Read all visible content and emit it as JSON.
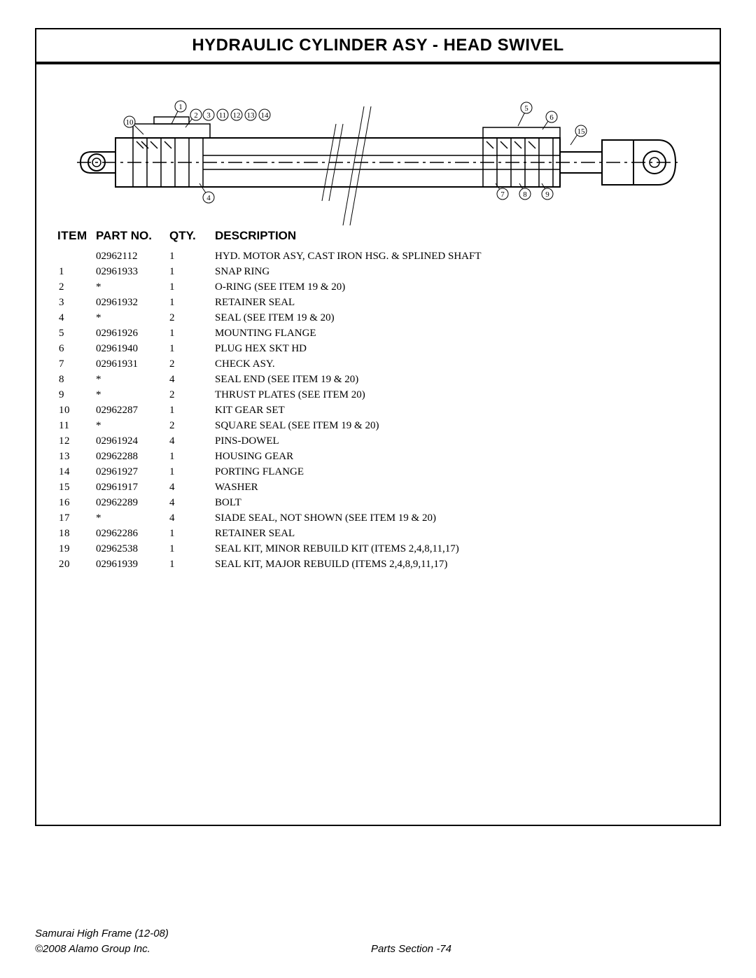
{
  "title": "HYDRAULIC CYLINDER ASY - HEAD SWIVEL",
  "headers": {
    "item": "ITEM",
    "partno": "PART NO.",
    "qty": "QTY.",
    "desc": "DESCRIPTION"
  },
  "rows": [
    {
      "item": "",
      "partno": "02962112",
      "qty": "1",
      "desc": "HYD. MOTOR ASY, CAST IRON HSG. & SPLINED SHAFT"
    },
    {
      "item": "1",
      "partno": "02961933",
      "qty": "1",
      "desc": "SNAP RING"
    },
    {
      "item": "2",
      "partno": "*",
      "qty": "1",
      "desc": "O-RING (SEE ITEM 19 & 20)"
    },
    {
      "item": "3",
      "partno": "02961932",
      "qty": "1",
      "desc": "RETAINER SEAL"
    },
    {
      "item": "4",
      "partno": "*",
      "qty": "2",
      "desc": "SEAL (SEE ITEM 19 & 20)"
    },
    {
      "item": "5",
      "partno": "02961926",
      "qty": "1",
      "desc": "MOUNTING FLANGE"
    },
    {
      "item": "6",
      "partno": "02961940",
      "qty": "1",
      "desc": "PLUG HEX SKT HD"
    },
    {
      "item": "7",
      "partno": "02961931",
      "qty": "2",
      "desc": "CHECK ASY."
    },
    {
      "item": "8",
      "partno": "*",
      "qty": "4",
      "desc": "SEAL END (SEE ITEM 19 & 20)"
    },
    {
      "item": "9",
      "partno": "*",
      "qty": "2",
      "desc": "THRUST PLATES (SEE ITEM 20)"
    },
    {
      "item": "10",
      "partno": "02962287",
      "qty": "1",
      "desc": "KIT GEAR SET"
    },
    {
      "item": "11",
      "partno": "*",
      "qty": "2",
      "desc": "SQUARE SEAL (SEE ITEM 19 & 20)"
    },
    {
      "item": "12",
      "partno": "02961924",
      "qty": "4",
      "desc": "PINS-DOWEL"
    },
    {
      "item": "13",
      "partno": "02962288",
      "qty": "1",
      "desc": "HOUSING GEAR"
    },
    {
      "item": "14",
      "partno": "02961927",
      "qty": "1",
      "desc": "PORTING FLANGE"
    },
    {
      "item": "15",
      "partno": "02961917",
      "qty": "4",
      "desc": "WASHER"
    },
    {
      "item": "16",
      "partno": "02962289",
      "qty": "4",
      "desc": "BOLT"
    },
    {
      "item": "17",
      "partno": "*",
      "qty": "4",
      "desc": "SIADE SEAL, NOT SHOWN (SEE ITEM 19 & 20)"
    },
    {
      "item": "18",
      "partno": "02962286",
      "qty": "1",
      "desc": "RETAINER SEAL"
    },
    {
      "item": "19",
      "partno": "02962538",
      "qty": "1",
      "desc": "SEAL KIT, MINOR REBUILD KIT (ITEMS 2,4,8,11,17)"
    },
    {
      "item": "20",
      "partno": "02961939",
      "qty": "1",
      "desc": "SEAL KIT, MAJOR REBUILD (ITEMS 2,4,8,9,11,17)"
    }
  ],
  "footer": {
    "model": "Samurai High Frame (12-08)",
    "copyright": "©2008 Alamo Group Inc.",
    "section": "Parts Section -74"
  },
  "callouts": [
    "1",
    "2",
    "3",
    "4",
    "5",
    "6",
    "7",
    "8",
    "9",
    "10",
    "11",
    "12",
    "13",
    "14",
    "15"
  ],
  "styling": {
    "page_bg": "#ffffff",
    "text_color": "#000000",
    "frame_border": "#000000",
    "title_font": "Arial",
    "title_size_pt": 18,
    "header_font": "Arial",
    "header_size_pt": 13,
    "body_font": "Times New Roman",
    "body_size_pt": 11,
    "footer_font": "Arial",
    "footer_style": "italic",
    "footer_size_pt": 11,
    "diagram_stroke": "#000000",
    "diagram_stroke_thin": 1,
    "diagram_stroke_thick": 2
  }
}
